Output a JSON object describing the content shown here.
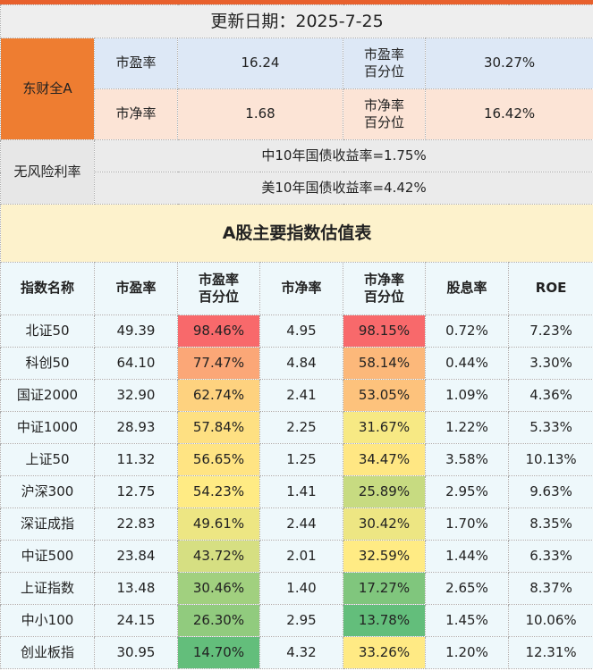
{
  "header": {
    "title": "更新日期：2025-7-25"
  },
  "summary": {
    "label": "东财全A",
    "rows": [
      [
        "市盈率",
        "16.24",
        "市盈率\n百分位",
        "30.27%"
      ],
      [
        "市净率",
        "1.68",
        "市净率\n百分位",
        "16.42%"
      ]
    ]
  },
  "risk_free": {
    "label": "无风险利率",
    "rows": [
      "中10年国债收益率=1.75%",
      "美10年国债收益率=4.42%"
    ]
  },
  "table": {
    "title": "A股主要指数估值表",
    "columns": [
      "指数名称",
      "市盈率",
      "市盈率\n百分位",
      "市净率",
      "市净率\n百分位",
      "股息率",
      "ROE"
    ],
    "rows": [
      [
        "北证50",
        "49.39",
        "98.46%",
        "4.95",
        "98.15%",
        "0.72%",
        "7.23%"
      ],
      [
        "科创50",
        "64.10",
        "77.47%",
        "4.84",
        "58.14%",
        "0.44%",
        "3.30%"
      ],
      [
        "国证2000",
        "32.90",
        "62.74%",
        "2.41",
        "53.05%",
        "1.09%",
        "4.36%"
      ],
      [
        "中证1000",
        "28.93",
        "57.84%",
        "2.25",
        "31.67%",
        "1.22%",
        "5.33%"
      ],
      [
        "上证50",
        "11.32",
        "56.65%",
        "1.25",
        "34.47%",
        "3.58%",
        "10.13%"
      ],
      [
        "沪深300",
        "12.75",
        "54.23%",
        "1.41",
        "25.89%",
        "2.95%",
        "9.63%"
      ],
      [
        "深证成指",
        "22.83",
        "49.61%",
        "2.44",
        "30.42%",
        "1.70%",
        "8.35%"
      ],
      [
        "中证500",
        "23.84",
        "43.72%",
        "2.01",
        "32.59%",
        "1.44%",
        "6.33%"
      ],
      [
        "上证指数",
        "13.48",
        "30.46%",
        "1.40",
        "17.27%",
        "2.65%",
        "8.37%"
      ],
      [
        "中小100",
        "24.15",
        "26.30%",
        "2.95",
        "13.78%",
        "1.45%",
        "10.06%"
      ],
      [
        "创业板指",
        "30.95",
        "14.70%",
        "4.32",
        "33.26%",
        "1.20%",
        "12.31%"
      ]
    ]
  }
}
